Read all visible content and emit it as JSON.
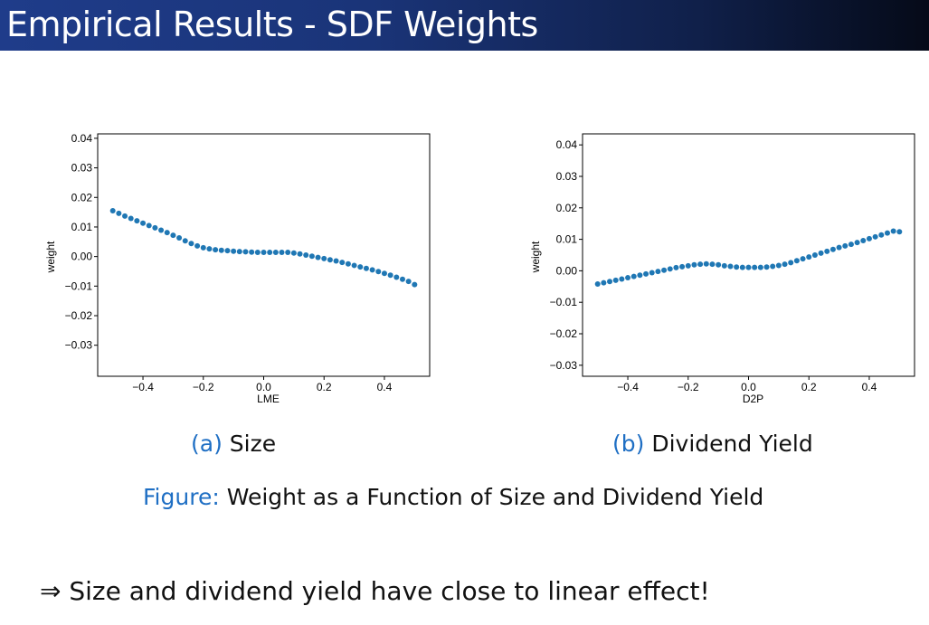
{
  "slide": {
    "title": "Empirical Results - SDF Weights"
  },
  "subfigures": [
    {
      "tag": "(a)",
      "caption": "Size"
    },
    {
      "tag": "(b)",
      "caption": "Dividend Yield"
    }
  ],
  "figure_caption": {
    "tag": "Figure:",
    "text": "Weight as a Function of Size and Dividend Yield"
  },
  "conclusion": {
    "arrow": "⇒",
    "text": "Size and dividend yield have close to linear effect!"
  },
  "colors": {
    "marker": "#1f77b4",
    "caption_tag": "#1f6fc4",
    "title_bar_start": "#1f3c8a",
    "title_bar_end": "#050a18"
  },
  "chart_data": [
    {
      "type": "scatter",
      "xlabel": "LME",
      "ylabel": "weight",
      "xlim": [
        -0.55,
        0.55
      ],
      "ylim": [
        -0.0405,
        0.0415
      ],
      "xticks": [
        -0.4,
        -0.2,
        0.0,
        0.2,
        0.4
      ],
      "xtick_labels": [
        "−0.4",
        "−0.2",
        "0.0",
        "0.2",
        "0.4"
      ],
      "yticks": [
        0.04,
        0.03,
        0.02,
        0.01,
        0.0,
        -0.01,
        -0.02,
        -0.03
      ],
      "ytick_labels": [
        "0.04",
        "0.03",
        "0.02",
        "0.01",
        "0.00",
        "−0.01",
        "−0.02",
        "−0.03"
      ],
      "grid": false,
      "x": [
        -0.5,
        -0.48,
        -0.46,
        -0.44,
        -0.42,
        -0.4,
        -0.38,
        -0.36,
        -0.34,
        -0.32,
        -0.3,
        -0.28,
        -0.26,
        -0.24,
        -0.22,
        -0.2,
        -0.18,
        -0.16,
        -0.14,
        -0.12,
        -0.1,
        -0.08,
        -0.06,
        -0.04,
        -0.02,
        0.0,
        0.02,
        0.04,
        0.06,
        0.08,
        0.1,
        0.12,
        0.14,
        0.16,
        0.18,
        0.2,
        0.22,
        0.24,
        0.26,
        0.28,
        0.3,
        0.32,
        0.34,
        0.36,
        0.38,
        0.4,
        0.42,
        0.44,
        0.46,
        0.48,
        0.5
      ],
      "y": [
        0.0155,
        0.0146,
        0.0137,
        0.0129,
        0.0121,
        0.0113,
        0.0105,
        0.0097,
        0.0089,
        0.0081,
        0.0072,
        0.0063,
        0.0053,
        0.0044,
        0.0036,
        0.003,
        0.0026,
        0.0023,
        0.0021,
        0.002,
        0.0018,
        0.0017,
        0.0016,
        0.0015,
        0.0014,
        0.0014,
        0.0014,
        0.0014,
        0.0014,
        0.0014,
        0.0012,
        0.0009,
        0.0005,
        0.0001,
        -0.0003,
        -0.0007,
        -0.0011,
        -0.0015,
        -0.002,
        -0.0025,
        -0.003,
        -0.0035,
        -0.004,
        -0.0045,
        -0.0051,
        -0.0057,
        -0.0063,
        -0.007,
        -0.0077,
        -0.0084,
        -0.0095
      ]
    },
    {
      "type": "scatter",
      "xlabel": "D2P",
      "ylabel": "weight",
      "xlim": [
        -0.55,
        0.55
      ],
      "ylim": [
        -0.0335,
        0.0435
      ],
      "xticks": [
        -0.4,
        -0.2,
        0.0,
        0.2,
        0.4
      ],
      "xtick_labels": [
        "−0.4",
        "−0.2",
        "0.0",
        "0.2",
        "0.4"
      ],
      "yticks": [
        0.04,
        0.03,
        0.02,
        0.01,
        0.0,
        -0.01,
        -0.02,
        -0.03
      ],
      "ytick_labels": [
        "0.04",
        "0.03",
        "0.02",
        "0.01",
        "0.00",
        "−0.01",
        "−0.02",
        "−0.03"
      ],
      "grid": false,
      "x": [
        -0.5,
        -0.48,
        -0.46,
        -0.44,
        -0.42,
        -0.4,
        -0.38,
        -0.36,
        -0.34,
        -0.32,
        -0.3,
        -0.28,
        -0.26,
        -0.24,
        -0.22,
        -0.2,
        -0.18,
        -0.16,
        -0.14,
        -0.12,
        -0.1,
        -0.08,
        -0.06,
        -0.04,
        -0.02,
        0.0,
        0.02,
        0.04,
        0.06,
        0.08,
        0.1,
        0.12,
        0.14,
        0.16,
        0.18,
        0.2,
        0.22,
        0.24,
        0.26,
        0.28,
        0.3,
        0.32,
        0.34,
        0.36,
        0.38,
        0.4,
        0.42,
        0.44,
        0.46,
        0.48,
        0.5
      ],
      "y": [
        -0.0042,
        -0.0038,
        -0.0034,
        -0.003,
        -0.0026,
        -0.0022,
        -0.0018,
        -0.0014,
        -0.001,
        -0.0006,
        -0.0002,
        0.0002,
        0.0006,
        0.001,
        0.0013,
        0.0016,
        0.0019,
        0.0021,
        0.0022,
        0.0021,
        0.0019,
        0.0016,
        0.0014,
        0.0012,
        0.0011,
        0.0011,
        0.0011,
        0.0011,
        0.0012,
        0.0014,
        0.0017,
        0.0021,
        0.0026,
        0.0032,
        0.0038,
        0.0044,
        0.005,
        0.0056,
        0.0062,
        0.0068,
        0.0074,
        0.0079,
        0.0084,
        0.009,
        0.0096,
        0.0102,
        0.0108,
        0.0114,
        0.012,
        0.0126,
        0.0124
      ]
    }
  ]
}
